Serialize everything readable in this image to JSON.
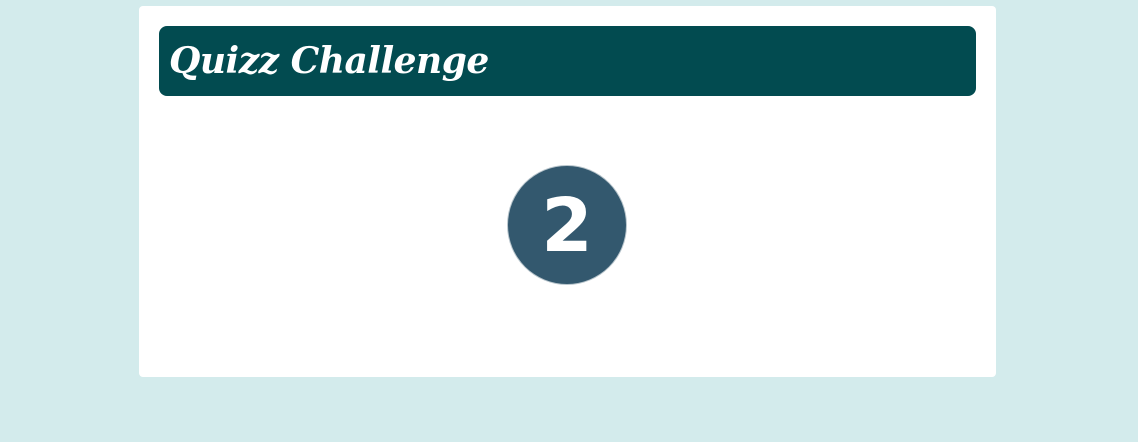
{
  "header": {
    "title": "Quizz Challenge"
  },
  "countdown": {
    "value": "2"
  },
  "colors": {
    "page_background": "#d3ebec",
    "card_background": "#ffffff",
    "header_background": "#024b50",
    "countdown_circle": "#33586e",
    "text_light": "#ffffff"
  }
}
